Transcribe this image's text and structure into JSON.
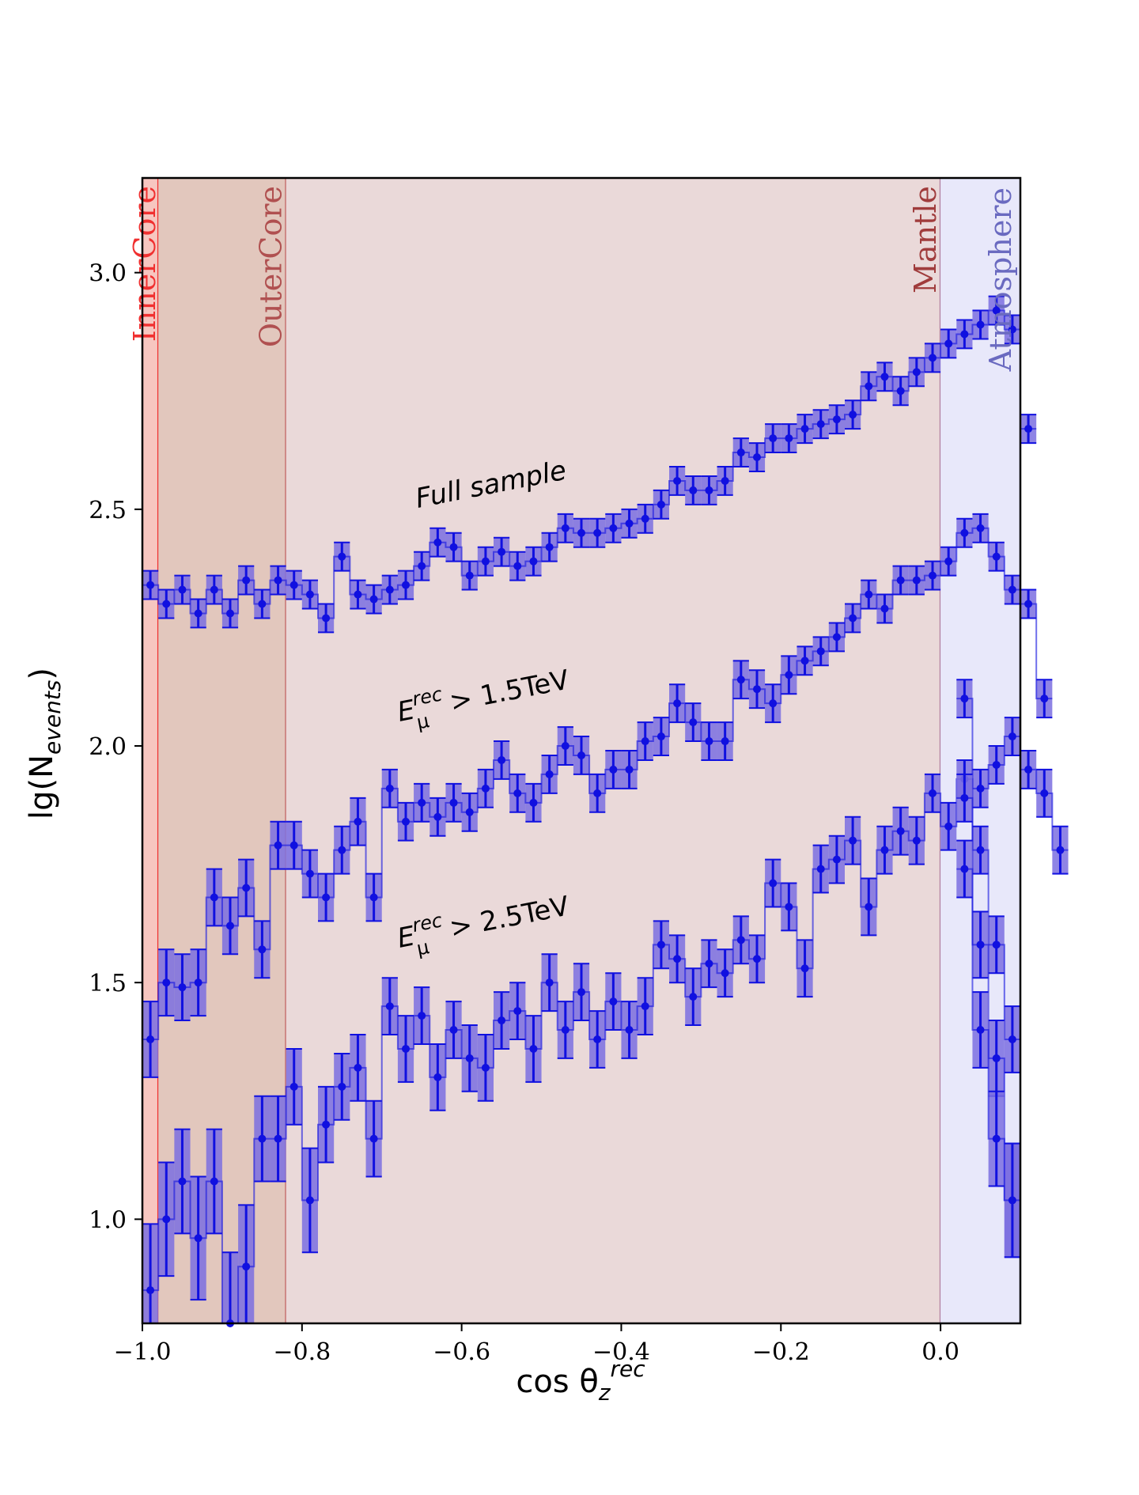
{
  "chart_data": {
    "type": "line",
    "xlabel_base": "cos θ",
    "xlabel_sub": "z",
    "xlabel_sup": "rec",
    "ylabel_base": "lg(N",
    "ylabel_sub": "events",
    "ylabel_close": ")",
    "xlim": [
      -1.0,
      0.1
    ],
    "ylim": [
      0.78,
      3.2
    ],
    "xticks": [
      "-1.0",
      "-0.8",
      "-0.6",
      "-0.4",
      "-0.2",
      "0.0"
    ],
    "xtick_values": [
      -1.0,
      -0.8,
      -0.6,
      -0.4,
      -0.2,
      0.0
    ],
    "yticks": [
      "1.0",
      "1.5",
      "2.0",
      "2.5",
      "3.0"
    ],
    "ytick_values": [
      1.0,
      1.5,
      2.0,
      2.5,
      3.0
    ],
    "regions": [
      {
        "label": "InnerCore",
        "x0": -1.0,
        "x1": -0.98,
        "fill": "#f7c6c0",
        "line": "#f03030",
        "text_color": "#f03030"
      },
      {
        "label": "OuterCore",
        "x0": -0.98,
        "x1": -0.82,
        "fill": "#e2c7bd",
        "line": "#c06060",
        "text_color": "#b05050"
      },
      {
        "label": "Mantle",
        "x0": -0.82,
        "x1": 0.0,
        "fill": "#ead9d9",
        "line": "#b080a0",
        "text_color": "#a03c3c"
      },
      {
        "label": "Atmosphere",
        "x0": 0.0,
        "x1": 0.1,
        "fill": "#e8e8fa",
        "line": null,
        "text_color": "#6a6ac0"
      }
    ],
    "bin_width": 0.02,
    "x_start": -0.99,
    "series_color": "#1010e0",
    "band_color": "#7b6ee0",
    "series": [
      {
        "name": "Full sample",
        "label_parts": {
          "text": "Full sample"
        },
        "values": [
          2.34,
          2.3,
          2.33,
          2.28,
          2.33,
          2.28,
          2.35,
          2.3,
          2.35,
          2.34,
          2.32,
          2.27,
          2.4,
          2.32,
          2.31,
          2.33,
          2.34,
          2.38,
          2.43,
          2.42,
          2.36,
          2.39,
          2.41,
          2.38,
          2.39,
          2.42,
          2.46,
          2.45,
          2.45,
          2.46,
          2.47,
          2.48,
          2.51,
          2.56,
          2.54,
          2.54,
          2.56,
          2.62,
          2.61,
          2.65,
          2.65,
          2.67,
          2.68,
          2.69,
          2.7,
          2.76,
          2.78,
          2.75,
          2.79,
          2.82,
          2.85,
          2.87,
          2.89,
          2.92,
          2.88,
          2.67
        ],
        "errors": [
          0.03,
          0.03,
          0.03,
          0.03,
          0.03,
          0.03,
          0.03,
          0.03,
          0.03,
          0.03,
          0.03,
          0.03,
          0.03,
          0.03,
          0.03,
          0.03,
          0.03,
          0.03,
          0.03,
          0.03,
          0.03,
          0.03,
          0.03,
          0.03,
          0.03,
          0.03,
          0.03,
          0.03,
          0.03,
          0.03,
          0.03,
          0.03,
          0.03,
          0.03,
          0.03,
          0.03,
          0.03,
          0.03,
          0.03,
          0.03,
          0.03,
          0.03,
          0.03,
          0.03,
          0.03,
          0.03,
          0.03,
          0.03,
          0.03,
          0.03,
          0.03,
          0.03,
          0.03,
          0.03,
          0.03,
          0.03
        ]
      },
      {
        "name": "E_mu^rec > 1.5TeV",
        "label_parts": {
          "base": "E",
          "sup": "rec",
          "sub": "μ",
          "rest": " > 1.5TeV"
        },
        "values": [
          1.38,
          1.5,
          1.49,
          1.5,
          1.68,
          1.62,
          1.7,
          1.57,
          1.79,
          1.79,
          1.73,
          1.68,
          1.78,
          1.84,
          1.68,
          1.91,
          1.84,
          1.88,
          1.85,
          1.88,
          1.86,
          1.91,
          1.97,
          1.9,
          1.88,
          1.94,
          2.0,
          1.98,
          1.9,
          1.95,
          1.95,
          2.01,
          2.02,
          2.09,
          2.05,
          2.01,
          2.01,
          2.14,
          2.12,
          2.09,
          2.15,
          2.18,
          2.2,
          2.23,
          2.27,
          2.32,
          2.29,
          2.35,
          2.35,
          2.36,
          2.39,
          2.45,
          2.46,
          2.4,
          2.33,
          2.3,
          2.1
        ],
        "errors": [
          0.08,
          0.07,
          0.07,
          0.07,
          0.06,
          0.06,
          0.06,
          0.06,
          0.05,
          0.05,
          0.05,
          0.05,
          0.05,
          0.05,
          0.05,
          0.04,
          0.04,
          0.04,
          0.04,
          0.04,
          0.04,
          0.04,
          0.04,
          0.04,
          0.04,
          0.04,
          0.04,
          0.04,
          0.04,
          0.04,
          0.04,
          0.04,
          0.04,
          0.04,
          0.04,
          0.04,
          0.04,
          0.04,
          0.04,
          0.04,
          0.04,
          0.03,
          0.03,
          0.03,
          0.03,
          0.03,
          0.03,
          0.03,
          0.03,
          0.03,
          0.03,
          0.03,
          0.03,
          0.03,
          0.03,
          0.03,
          0.04
        ]
      },
      {
        "name": "E_mu^rec > 2.5TeV",
        "label_parts": {
          "base": "E",
          "sup": "rec",
          "sub": "μ",
          "rest": " > 2.5TeV"
        },
        "values": [
          0.85,
          1.0,
          1.08,
          0.96,
          1.08,
          0.78,
          0.9,
          1.17,
          1.17,
          1.28,
          1.04,
          1.2,
          1.28,
          1.32,
          1.17,
          1.45,
          1.36,
          1.43,
          1.3,
          1.4,
          1.34,
          1.32,
          1.42,
          1.44,
          1.36,
          1.5,
          1.4,
          1.48,
          1.38,
          1.46,
          1.4,
          1.45,
          1.58,
          1.55,
          1.47,
          1.54,
          1.52,
          1.59,
          1.55,
          1.71,
          1.66,
          1.53,
          1.74,
          1.76,
          1.8,
          1.66,
          1.78,
          1.82,
          1.8,
          1.9,
          1.83,
          1.93,
          1.91,
          1.96,
          2.02,
          1.95,
          1.9,
          1.78
        ],
        "errors": [
          0.14,
          0.12,
          0.11,
          0.13,
          0.11,
          0.15,
          0.13,
          0.09,
          0.09,
          0.08,
          0.11,
          0.08,
          0.07,
          0.07,
          0.08,
          0.06,
          0.07,
          0.06,
          0.07,
          0.06,
          0.07,
          0.07,
          0.06,
          0.06,
          0.07,
          0.06,
          0.06,
          0.06,
          0.06,
          0.06,
          0.06,
          0.06,
          0.05,
          0.05,
          0.06,
          0.05,
          0.05,
          0.05,
          0.05,
          0.05,
          0.05,
          0.06,
          0.05,
          0.05,
          0.05,
          0.06,
          0.05,
          0.05,
          0.05,
          0.04,
          0.05,
          0.04,
          0.04,
          0.04,
          0.04,
          0.04,
          0.05,
          0.05
        ]
      }
    ],
    "tail_bins": {
      "x": [
        0.03,
        0.05,
        0.07,
        0.09
      ],
      "full_values": [
        2.1,
        1.78,
        1.58,
        1.38
      ],
      "full_errors": [
        0.04,
        0.05,
        0.06,
        0.07
      ],
      "mid_values": [
        1.89,
        1.58,
        1.34,
        1.04
      ],
      "mid_errors": [
        0.05,
        0.07,
        0.08,
        0.12
      ],
      "low_values": [
        1.74,
        1.4,
        1.17,
        1.04
      ],
      "low_errors": [
        0.06,
        0.08,
        0.1,
        0.12
      ]
    }
  }
}
